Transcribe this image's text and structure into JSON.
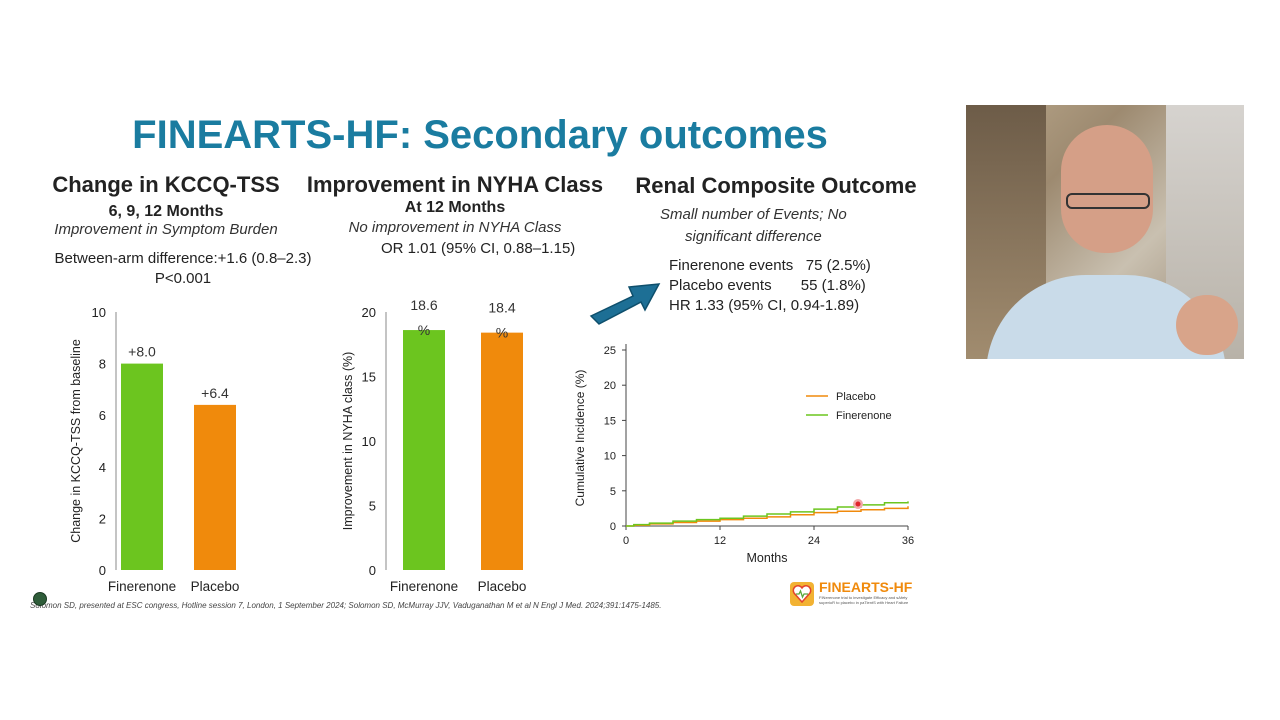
{
  "slide": {
    "title": "FINEARTS-HF: Secondary outcomes",
    "kccq": {
      "heading": "Change in KCCQ-TSS",
      "subheading": "6, 9, 12 Months",
      "italic": "Improvement in Symptom Burden",
      "diff": "Between-arm difference:+1.6 (0.8–2.3)",
      "p": "P<0.001"
    },
    "nyha": {
      "heading": "Improvement in NYHA Class",
      "subheading": "At 12 Months",
      "italic": "No improvement in NYHA Class",
      "or": "OR 1.01 (95% CI, 0.88–1.15)"
    },
    "renal": {
      "heading": "Renal Composite Outcome",
      "italic1": "Small number of Events;  No",
      "italic2": "significant difference",
      "fin_events": "Finerenone events   75 (2.5%)",
      "pla_events": "Placebo events       55 (1.8%)",
      "hr": "HR 1.33 (95% CI, 0.94-1.89)"
    },
    "citation": "Solomon SD, presented at ESC congress, Hotline session 7, London, 1 September 2024; Solomon SD, McMurray JJV, Vaduganathan M et al N Engl J Med. 2024;391:1475-1485.",
    "logo": {
      "name": "FINEARTS-HF",
      "line1": "FINerenone trial to investigate Efficacy and sAfety",
      "line2": "superioR to placebo in paTientS with Heart Failure"
    },
    "colors": {
      "title": "#1a7ca0",
      "finerenone": "#6cc51f",
      "placebo": "#f08a0c",
      "arrow": "#1d6f95"
    }
  },
  "chart_data": [
    {
      "type": "bar",
      "categories": [
        "Finerenone",
        "Placebo"
      ],
      "values": [
        8.0,
        6.4
      ],
      "data_labels": [
        "+8.0",
        "+6.4"
      ],
      "ylabel": "Change in KCCQ-TSS from baseline",
      "ylim": [
        0,
        10
      ],
      "yticks": [
        "0",
        "2",
        "4",
        "6",
        "8",
        "10"
      ]
    },
    {
      "type": "bar",
      "categories": [
        "Finerenone",
        "Placebo"
      ],
      "values": [
        18.6,
        18.4
      ],
      "data_labels": [
        "18.6",
        "18.4"
      ],
      "data_label_suffix": "%",
      "ylabel": "Improvement in NYHA class (%)",
      "ylim": [
        0,
        20
      ],
      "yticks": [
        "0",
        "5",
        "10",
        "15",
        "20"
      ]
    },
    {
      "type": "line",
      "xlabel": "Months",
      "ylabel": "Cumulative Incidence (%)",
      "xlim": [
        0,
        36
      ],
      "ylim": [
        0,
        25
      ],
      "xticks": [
        "0",
        "12",
        "24",
        "36"
      ],
      "yticks": [
        "0",
        "5",
        "10",
        "15",
        "20",
        "25"
      ],
      "legend": "right",
      "series": [
        {
          "name": "Placebo",
          "x": [
            0,
            1,
            3,
            6,
            9,
            12,
            15,
            18,
            21,
            24,
            27,
            30,
            33,
            36
          ],
          "values": [
            0,
            0.1,
            0.3,
            0.5,
            0.7,
            0.9,
            1.1,
            1.3,
            1.6,
            1.9,
            2.1,
            2.3,
            2.5,
            2.8
          ]
        },
        {
          "name": "Finerenone",
          "x": [
            0,
            1,
            3,
            6,
            9,
            12,
            15,
            18,
            21,
            24,
            27,
            30,
            33,
            36
          ],
          "values": [
            0,
            0.2,
            0.4,
            0.7,
            0.9,
            1.1,
            1.4,
            1.7,
            2.0,
            2.4,
            2.7,
            3.0,
            3.3,
            3.5
          ]
        }
      ]
    }
  ]
}
